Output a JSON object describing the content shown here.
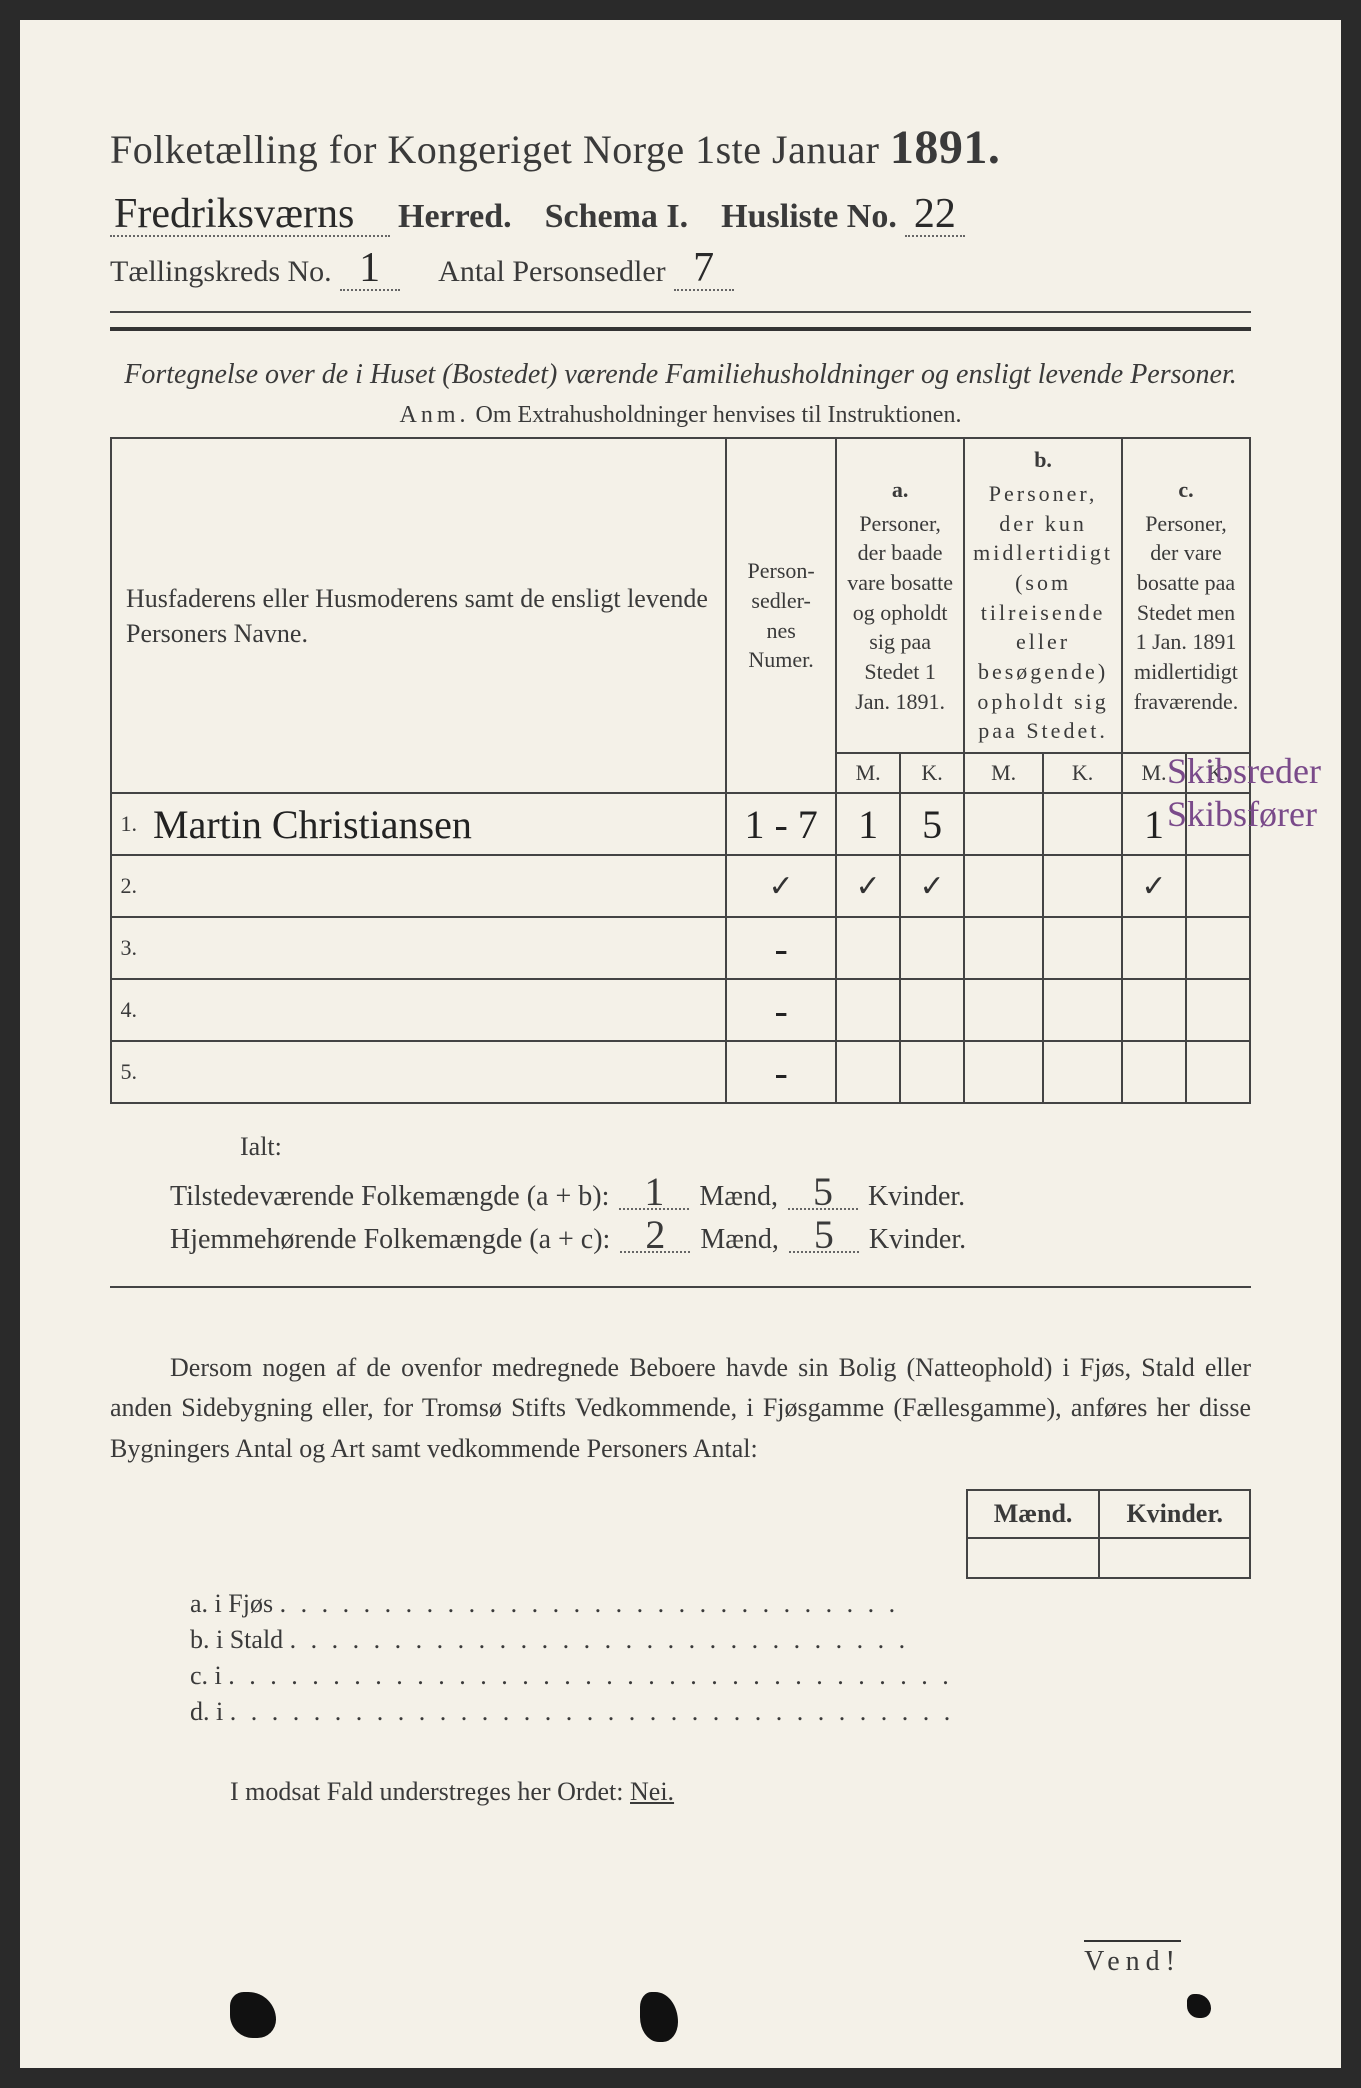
{
  "header": {
    "title_prefix": "Folketælling for Kongeriget Norge 1ste Januar",
    "year": "1891.",
    "herred_value": "Fredriksværns",
    "herred_label": "Herred.",
    "schema_label": "Schema I.",
    "husliste_label": "Husliste No.",
    "husliste_value": "22",
    "kreds_label": "Tællingskreds No.",
    "kreds_value": "1",
    "antal_label": "Antal Personsedler",
    "antal_value": "7"
  },
  "subtitle": {
    "line": "Fortegnelse over de i Huset (Bostedet) værende Familiehusholdninger og ensligt levende Personer.",
    "anm_label": "Anm.",
    "anm_text": "Om Extrahusholdninger henvises til Instruktionen."
  },
  "table": {
    "col_name": "Husfaderens eller Husmoderens samt de ensligt levende Personers Navne.",
    "col_num": "Person-\nsedler-\nnes\nNumer.",
    "col_a_letter": "a.",
    "col_a": "Personer, der baade vare bosatte og opholdt sig paa Stedet 1 Jan. 1891.",
    "col_b_letter": "b.",
    "col_b": "Personer, der kun midlertidigt (som tilreisende eller besøgende) opholdt sig paa Stedet.",
    "col_c_letter": "c.",
    "col_c": "Personer, der vare bosatte paa Stedet men 1 Jan. 1891 midlertidigt fraværende.",
    "mk_m": "M.",
    "mk_k": "K.",
    "rows": [
      {
        "n": "1.",
        "name": "Martin Christiansen",
        "num": "1 - 7",
        "a_m": "1",
        "a_k": "5",
        "b_m": "",
        "b_k": "",
        "c_m": "1",
        "c_k": ""
      },
      {
        "n": "2.",
        "name": "",
        "num": "-",
        "a_m": "✓",
        "a_k": "✓",
        "b_m": "",
        "b_k": "",
        "c_m": "✓",
        "c_k": "",
        "tick_row": true,
        "num_tick": "✓"
      },
      {
        "n": "3.",
        "name": "",
        "num": "-",
        "a_m": "",
        "a_k": "",
        "b_m": "",
        "b_k": "",
        "c_m": "",
        "c_k": ""
      },
      {
        "n": "4.",
        "name": "",
        "num": "-",
        "a_m": "",
        "a_k": "",
        "b_m": "",
        "b_k": "",
        "c_m": "",
        "c_k": ""
      },
      {
        "n": "5.",
        "name": "",
        "num": "-",
        "a_m": "",
        "a_k": "",
        "b_m": "",
        "b_k": "",
        "c_m": "",
        "c_k": ""
      }
    ]
  },
  "margin_note": {
    "line1": "Skibsreder",
    "line2": "Skibsfører"
  },
  "totals": {
    "ialt": "Ialt:",
    "row1_label": "Tilstedeværende Folkemængde (a + b):",
    "row1_m": "1",
    "row1_k": "5",
    "row2_label": "Hjemmehørende Folkemængde (a + c):",
    "row2_m": "2",
    "row2_k": "5",
    "maend": "Mænd,",
    "kvinder": "Kvinder."
  },
  "para": "Dersom nogen af de ovenfor medregnede Beboere havde sin Bolig (Natteophold) i Fjøs, Stald eller anden Sidebygning eller, for Tromsø Stifts Vedkommende, i Fjøsgamme (Fællesgamme), anføres her disse Bygningers Antal og Art samt vedkommende Personers Antal:",
  "side_table": {
    "m": "Mænd.",
    "k": "Kvinder."
  },
  "dotlist": {
    "a": "a.  i      Fjøs",
    "b": "b.  i      Stald",
    "c": "c.  i",
    "d": "d.  i"
  },
  "modsat": {
    "text": "I modsat Fald understreges her Ordet:",
    "nei": "Nei."
  },
  "vend": "Vend!",
  "colors": {
    "paper": "#f4f1e8",
    "ink": "#3a3a3a",
    "margin_ink": "#7a4a8a"
  }
}
